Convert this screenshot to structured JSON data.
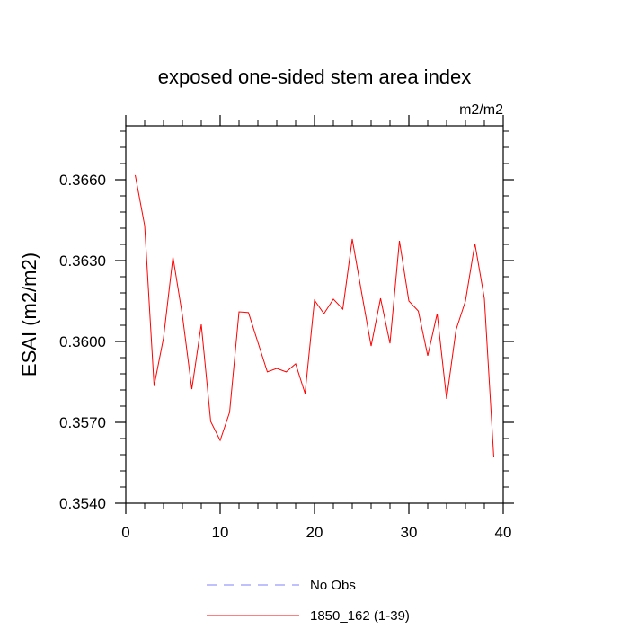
{
  "chart_data": {
    "type": "line",
    "title": "exposed one-sided stem area index",
    "units": "m2/m2",
    "ylabel": "ESAI  (m2/m2)",
    "xlabel": "",
    "xlim": [
      0,
      40
    ],
    "ylim": [
      0.354,
      0.368
    ],
    "x_ticks": [
      0,
      10,
      20,
      30,
      40
    ],
    "x_tick_labels": [
      "0",
      "10",
      "20",
      "30",
      "40"
    ],
    "y_ticks": [
      0.354,
      0.357,
      0.36,
      0.363,
      0.366
    ],
    "y_tick_labels": [
      "0.3540",
      "0.3570",
      "0.3600",
      "0.3630",
      "0.3660"
    ],
    "grid": false,
    "legend_position": "bottom",
    "legend": [
      {
        "label": "No Obs",
        "color": "#8080ff",
        "style": "dashed"
      },
      {
        "label": "1850_162 (1-39)",
        "color": "#ff0000",
        "style": "solid"
      }
    ],
    "series": [
      {
        "name": "1850_162 (1-39)",
        "color": "#ff0000",
        "x": [
          1,
          2,
          3,
          4,
          5,
          6,
          7,
          8,
          9,
          10,
          11,
          12,
          13,
          14,
          15,
          16,
          17,
          18,
          19,
          20,
          21,
          22,
          23,
          24,
          25,
          26,
          27,
          28,
          29,
          30,
          31,
          32,
          33,
          34,
          35,
          36,
          37,
          38,
          39
        ],
        "y": [
          0.36617,
          0.3643,
          0.35835,
          0.36013,
          0.36313,
          0.36097,
          0.35823,
          0.36063,
          0.35703,
          0.35633,
          0.35737,
          0.3611,
          0.36107,
          0.35997,
          0.35887,
          0.359,
          0.35887,
          0.35917,
          0.35807,
          0.36153,
          0.36103,
          0.36157,
          0.3612,
          0.3638,
          0.3618,
          0.35983,
          0.3616,
          0.35993,
          0.36373,
          0.3615,
          0.36113,
          0.35947,
          0.36103,
          0.35787,
          0.36043,
          0.3615,
          0.36363,
          0.3616,
          0.3557
        ]
      }
    ]
  }
}
